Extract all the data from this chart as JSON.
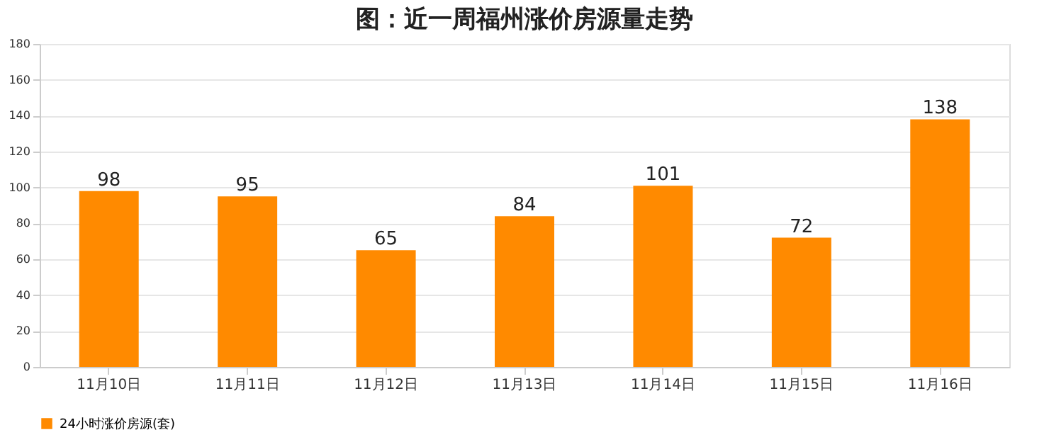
{
  "chart_data": {
    "type": "bar",
    "title": "图：近一周福州涨价房源量走势",
    "categories": [
      "11月10日",
      "11月11日",
      "11月12日",
      "11月13日",
      "11月14日",
      "11月15日",
      "11月16日"
    ],
    "series": [
      {
        "name": "24小时涨价房源(套)",
        "color": "#ff8a00",
        "values": [
          98,
          95,
          65,
          84,
          101,
          72,
          138
        ]
      }
    ],
    "ylim": [
      0,
      180
    ],
    "yticks": [
      0,
      20,
      40,
      60,
      80,
      100,
      120,
      140,
      160,
      180
    ],
    "grid": "y",
    "legend": "bottom",
    "data_labels": true
  }
}
